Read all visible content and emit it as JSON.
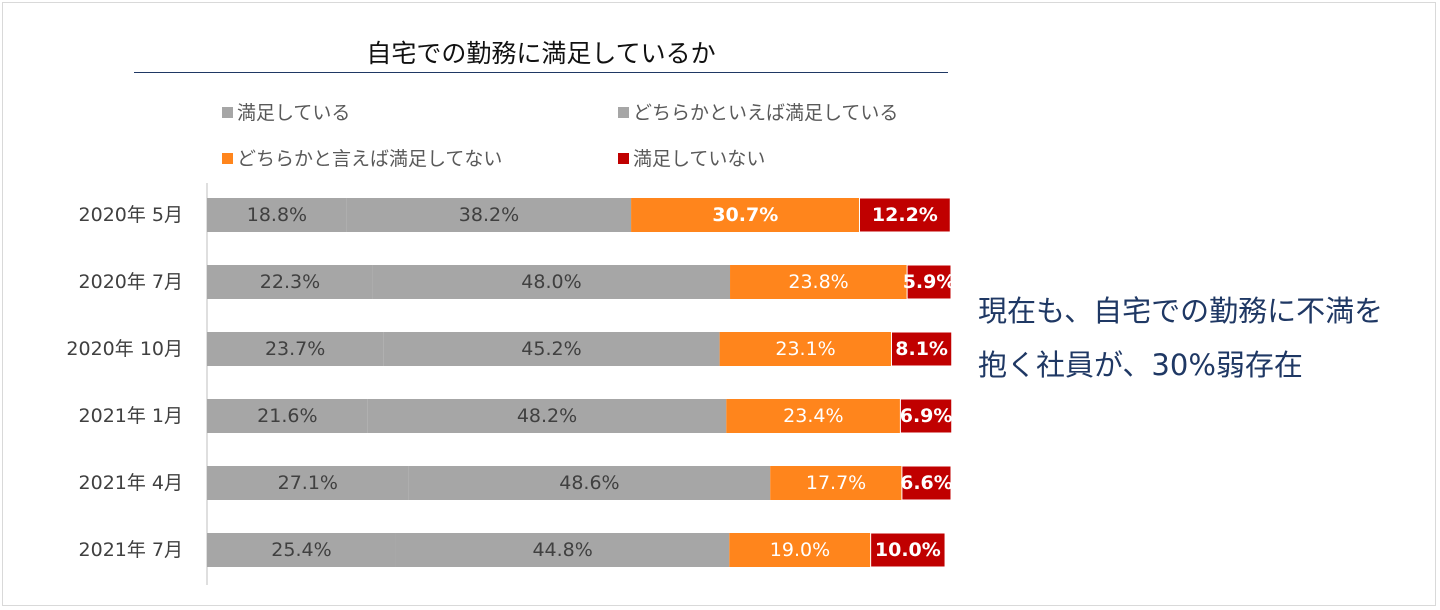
{
  "chart_data": {
    "type": "bar",
    "orientation": "horizontal",
    "stacked": true,
    "title": "自宅での勤務に満足しているか",
    "categories": [
      "2020年 5月",
      "2020年 7月",
      "2020年 10月",
      "2021年 1月",
      "2021年 4月",
      "2021年 7月"
    ],
    "value_format": "{v}%",
    "series": [
      {
        "name": "満足している",
        "color": "#a6a6a6",
        "label_color": "#404040",
        "bold": false,
        "values": [
          18.8,
          22.3,
          23.7,
          21.6,
          27.1,
          25.4
        ]
      },
      {
        "name": "どちらかといえば満足している",
        "color": "#a6a6a6",
        "label_color": "#404040",
        "bold": false,
        "values": [
          38.2,
          48.0,
          45.2,
          48.2,
          48.6,
          44.8
        ]
      },
      {
        "name": "どちらかと言えば満足してない",
        "color": "#ff851c",
        "label_color": "#ffffff",
        "bold": false,
        "values": [
          30.7,
          23.8,
          23.1,
          23.4,
          17.7,
          19.0
        ]
      },
      {
        "name": "満足していない",
        "color": "#c00000",
        "label_color": "#ffffff",
        "bold": false,
        "values": [
          12.2,
          5.9,
          8.1,
          6.9,
          6.6,
          10.0
        ]
      }
    ],
    "bold_labels": [
      [
        0,
        2
      ]
    ],
    "legend_position": "top",
    "grid": false
  },
  "annotation": {
    "line1": "現在も、自宅での勤務に不満を",
    "line2": "抱く社員が、30%弱存在"
  }
}
